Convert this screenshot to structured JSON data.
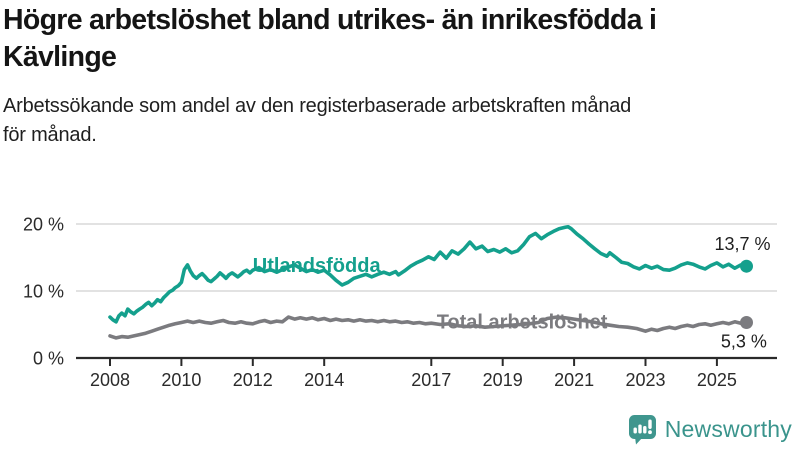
{
  "header": {
    "title": "Högre arbetslöshet bland utrikes- än inrikesfödda i\nKävlinge",
    "subtitle": "Arbetssökande som andel av den registerbaserade arbetskraften månad\nför månad."
  },
  "footer": {
    "brand_name": "Newsworthy",
    "logo_icon": "newsworthy-chart-bubble-icon",
    "brand_color": "#3a948c",
    "logo_fill": "#3f968e"
  },
  "chart_data": {
    "type": "line",
    "title": "Högre arbetslöshet bland utrikes- än inrikesfödda i Kävlinge",
    "subtitle": "Arbetssökande som andel av den registerbaserade arbetskraften månad för månad.",
    "unit": "%",
    "grid": "horizontal",
    "legend_position": "inline-labels",
    "colors": {
      "grid": "#d9d9d9",
      "axis": "#2a2a2a"
    },
    "x_axis": {
      "range": [
        2007.6,
        2026.6
      ],
      "ticks": [
        {
          "year": 2008,
          "label": "2008"
        },
        {
          "year": 2010,
          "label": "2010"
        },
        {
          "year": 2012,
          "label": "2012"
        },
        {
          "year": 2014,
          "label": "2014"
        },
        {
          "year": 2017,
          "label": "2017"
        },
        {
          "year": 2019,
          "label": "2019"
        },
        {
          "year": 2021,
          "label": "2021"
        },
        {
          "year": 2023,
          "label": "2023"
        },
        {
          "year": 2025,
          "label": "2025"
        }
      ]
    },
    "y_axis": {
      "range": [
        0,
        21
      ],
      "ticks": [
        {
          "value": 0,
          "label": "0 %"
        },
        {
          "value": 10,
          "label": "10 %"
        },
        {
          "value": 20,
          "label": "20 %"
        }
      ]
    },
    "series": [
      {
        "id": "utlandsfodda",
        "name": "Utlandsfödda",
        "color": "#14a08d",
        "label": {
          "x": 2012.0,
          "y": 12.8,
          "anchor": "start"
        },
        "end_label": {
          "text": "13,7 %",
          "x": 2026.5,
          "y": 16.1,
          "anchor": "end"
        },
        "last_value": "13,7 %",
        "points": [
          [
            2008.0,
            6.1
          ],
          [
            2008.08,
            5.7
          ],
          [
            2008.17,
            5.4
          ],
          [
            2008.25,
            6.3
          ],
          [
            2008.33,
            6.7
          ],
          [
            2008.42,
            6.3
          ],
          [
            2008.5,
            7.3
          ],
          [
            2008.58,
            6.9
          ],
          [
            2008.67,
            6.6
          ],
          [
            2008.75,
            7.0
          ],
          [
            2008.83,
            7.3
          ],
          [
            2008.92,
            7.6
          ],
          [
            2009.0,
            8.0
          ],
          [
            2009.08,
            8.3
          ],
          [
            2009.17,
            7.8
          ],
          [
            2009.25,
            8.2
          ],
          [
            2009.33,
            8.7
          ],
          [
            2009.42,
            8.4
          ],
          [
            2009.5,
            9.0
          ],
          [
            2009.58,
            9.4
          ],
          [
            2009.67,
            9.9
          ],
          [
            2009.75,
            10.1
          ],
          [
            2009.83,
            10.5
          ],
          [
            2009.92,
            10.8
          ],
          [
            2010.0,
            11.3
          ],
          [
            2010.08,
            13.2
          ],
          [
            2010.17,
            13.9
          ],
          [
            2010.25,
            13.0
          ],
          [
            2010.33,
            12.3
          ],
          [
            2010.42,
            11.9
          ],
          [
            2010.5,
            12.3
          ],
          [
            2010.58,
            12.6
          ],
          [
            2010.67,
            12.1
          ],
          [
            2010.75,
            11.6
          ],
          [
            2010.83,
            11.4
          ],
          [
            2010.92,
            11.8
          ],
          [
            2011.0,
            12.2
          ],
          [
            2011.08,
            12.7
          ],
          [
            2011.17,
            12.3
          ],
          [
            2011.25,
            11.9
          ],
          [
            2011.33,
            12.4
          ],
          [
            2011.42,
            12.7
          ],
          [
            2011.5,
            12.4
          ],
          [
            2011.58,
            12.1
          ],
          [
            2011.67,
            12.5
          ],
          [
            2011.75,
            12.9
          ],
          [
            2011.83,
            13.1
          ],
          [
            2011.92,
            12.7
          ],
          [
            2012.0,
            13.1
          ],
          [
            2012.17,
            13.5
          ],
          [
            2012.33,
            12.9
          ],
          [
            2012.5,
            13.2
          ],
          [
            2012.67,
            12.8
          ],
          [
            2012.83,
            13.2
          ],
          [
            2013.0,
            13.6
          ],
          [
            2013.17,
            13.9
          ],
          [
            2013.33,
            13.4
          ],
          [
            2013.5,
            12.9
          ],
          [
            2013.67,
            13.2
          ],
          [
            2013.83,
            12.8
          ],
          [
            2014.0,
            13.1
          ],
          [
            2014.17,
            12.4
          ],
          [
            2014.33,
            11.6
          ],
          [
            2014.5,
            10.9
          ],
          [
            2014.67,
            11.3
          ],
          [
            2014.83,
            11.9
          ],
          [
            2015.0,
            12.2
          ],
          [
            2015.17,
            12.5
          ],
          [
            2015.33,
            12.1
          ],
          [
            2015.5,
            12.5
          ],
          [
            2015.67,
            12.8
          ],
          [
            2015.83,
            12.5
          ],
          [
            2016.0,
            12.9
          ],
          [
            2016.08,
            12.4
          ],
          [
            2016.25,
            13.0
          ],
          [
            2016.42,
            13.7
          ],
          [
            2016.58,
            14.2
          ],
          [
            2016.75,
            14.6
          ],
          [
            2016.92,
            15.1
          ],
          [
            2017.08,
            14.7
          ],
          [
            2017.25,
            15.8
          ],
          [
            2017.42,
            14.9
          ],
          [
            2017.58,
            16.0
          ],
          [
            2017.75,
            15.5
          ],
          [
            2017.92,
            16.3
          ],
          [
            2018.08,
            17.3
          ],
          [
            2018.25,
            16.3
          ],
          [
            2018.42,
            16.7
          ],
          [
            2018.58,
            15.9
          ],
          [
            2018.75,
            16.2
          ],
          [
            2018.92,
            15.8
          ],
          [
            2019.08,
            16.3
          ],
          [
            2019.25,
            15.7
          ],
          [
            2019.42,
            16.0
          ],
          [
            2019.58,
            16.9
          ],
          [
            2019.75,
            18.1
          ],
          [
            2019.92,
            18.6
          ],
          [
            2020.08,
            17.8
          ],
          [
            2020.25,
            18.4
          ],
          [
            2020.42,
            18.9
          ],
          [
            2020.58,
            19.3
          ],
          [
            2020.75,
            19.5
          ],
          [
            2020.83,
            19.6
          ],
          [
            2020.92,
            19.3
          ],
          [
            2021.08,
            18.5
          ],
          [
            2021.25,
            17.8
          ],
          [
            2021.42,
            17.0
          ],
          [
            2021.58,
            16.3
          ],
          [
            2021.75,
            15.6
          ],
          [
            2021.92,
            15.2
          ],
          [
            2022.0,
            15.7
          ],
          [
            2022.17,
            15.0
          ],
          [
            2022.33,
            14.3
          ],
          [
            2022.5,
            14.1
          ],
          [
            2022.67,
            13.6
          ],
          [
            2022.83,
            13.3
          ],
          [
            2023.0,
            13.8
          ],
          [
            2023.17,
            13.4
          ],
          [
            2023.33,
            13.7
          ],
          [
            2023.5,
            13.2
          ],
          [
            2023.67,
            13.1
          ],
          [
            2023.83,
            13.4
          ],
          [
            2024.0,
            13.9
          ],
          [
            2024.17,
            14.2
          ],
          [
            2024.33,
            14.0
          ],
          [
            2024.5,
            13.6
          ],
          [
            2024.67,
            13.3
          ],
          [
            2024.83,
            13.8
          ],
          [
            2025.0,
            14.2
          ],
          [
            2025.17,
            13.6
          ],
          [
            2025.33,
            14.0
          ],
          [
            2025.5,
            13.4
          ],
          [
            2025.67,
            13.9
          ],
          [
            2025.83,
            13.7
          ]
        ]
      },
      {
        "id": "total",
        "name": "Total arbetslöshet",
        "color": "#7b7b7f",
        "label": {
          "x": 2017.15,
          "y": 4.4,
          "anchor": "start"
        },
        "end_label": {
          "text": "5,3 %",
          "x": 2026.4,
          "y": 1.6,
          "anchor": "end"
        },
        "last_value": "5,3 %",
        "points": [
          [
            2008.0,
            3.3
          ],
          [
            2008.17,
            3.0
          ],
          [
            2008.33,
            3.2
          ],
          [
            2008.5,
            3.1
          ],
          [
            2008.67,
            3.3
          ],
          [
            2008.83,
            3.5
          ],
          [
            2009.0,
            3.7
          ],
          [
            2009.17,
            4.0
          ],
          [
            2009.33,
            4.3
          ],
          [
            2009.5,
            4.6
          ],
          [
            2009.67,
            4.9
          ],
          [
            2009.83,
            5.1
          ],
          [
            2010.0,
            5.3
          ],
          [
            2010.17,
            5.5
          ],
          [
            2010.33,
            5.3
          ],
          [
            2010.5,
            5.5
          ],
          [
            2010.67,
            5.3
          ],
          [
            2010.83,
            5.2
          ],
          [
            2011.0,
            5.4
          ],
          [
            2011.17,
            5.6
          ],
          [
            2011.33,
            5.3
          ],
          [
            2011.5,
            5.2
          ],
          [
            2011.67,
            5.4
          ],
          [
            2011.83,
            5.2
          ],
          [
            2012.0,
            5.1
          ],
          [
            2012.17,
            5.4
          ],
          [
            2012.33,
            5.6
          ],
          [
            2012.5,
            5.3
          ],
          [
            2012.67,
            5.5
          ],
          [
            2012.83,
            5.4
          ],
          [
            2013.0,
            6.1
          ],
          [
            2013.17,
            5.8
          ],
          [
            2013.33,
            6.0
          ],
          [
            2013.5,
            5.8
          ],
          [
            2013.67,
            6.0
          ],
          [
            2013.83,
            5.7
          ],
          [
            2014.0,
            5.9
          ],
          [
            2014.17,
            5.6
          ],
          [
            2014.33,
            5.8
          ],
          [
            2014.5,
            5.6
          ],
          [
            2014.67,
            5.7
          ],
          [
            2014.83,
            5.5
          ],
          [
            2015.0,
            5.7
          ],
          [
            2015.17,
            5.5
          ],
          [
            2015.33,
            5.6
          ],
          [
            2015.5,
            5.4
          ],
          [
            2015.67,
            5.6
          ],
          [
            2015.83,
            5.4
          ],
          [
            2016.0,
            5.5
          ],
          [
            2016.17,
            5.3
          ],
          [
            2016.33,
            5.4
          ],
          [
            2016.5,
            5.2
          ],
          [
            2016.67,
            5.3
          ],
          [
            2016.83,
            5.1
          ],
          [
            2017.0,
            5.2
          ],
          [
            2017.25,
            5.0
          ],
          [
            2017.5,
            5.1
          ],
          [
            2017.75,
            4.8
          ],
          [
            2018.0,
            4.7
          ],
          [
            2018.25,
            4.8
          ],
          [
            2018.5,
            4.6
          ],
          [
            2018.75,
            4.7
          ],
          [
            2019.0,
            4.8
          ],
          [
            2019.25,
            4.9
          ],
          [
            2019.5,
            5.0
          ],
          [
            2019.75,
            5.1
          ],
          [
            2020.0,
            5.3
          ],
          [
            2020.25,
            5.9
          ],
          [
            2020.5,
            6.1
          ],
          [
            2020.75,
            6.0
          ],
          [
            2021.0,
            5.8
          ],
          [
            2021.25,
            5.6
          ],
          [
            2021.5,
            5.4
          ],
          [
            2021.75,
            5.1
          ],
          [
            2022.0,
            4.9
          ],
          [
            2022.25,
            4.7
          ],
          [
            2022.5,
            4.6
          ],
          [
            2022.75,
            4.4
          ],
          [
            2023.0,
            4.0
          ],
          [
            2023.17,
            4.3
          ],
          [
            2023.33,
            4.1
          ],
          [
            2023.5,
            4.4
          ],
          [
            2023.67,
            4.6
          ],
          [
            2023.83,
            4.4
          ],
          [
            2024.0,
            4.7
          ],
          [
            2024.17,
            4.9
          ],
          [
            2024.33,
            4.7
          ],
          [
            2024.5,
            5.0
          ],
          [
            2024.67,
            5.1
          ],
          [
            2024.83,
            4.9
          ],
          [
            2025.0,
            5.1
          ],
          [
            2025.17,
            5.3
          ],
          [
            2025.33,
            5.1
          ],
          [
            2025.5,
            5.4
          ],
          [
            2025.67,
            5.2
          ],
          [
            2025.83,
            5.3
          ]
        ]
      }
    ]
  }
}
